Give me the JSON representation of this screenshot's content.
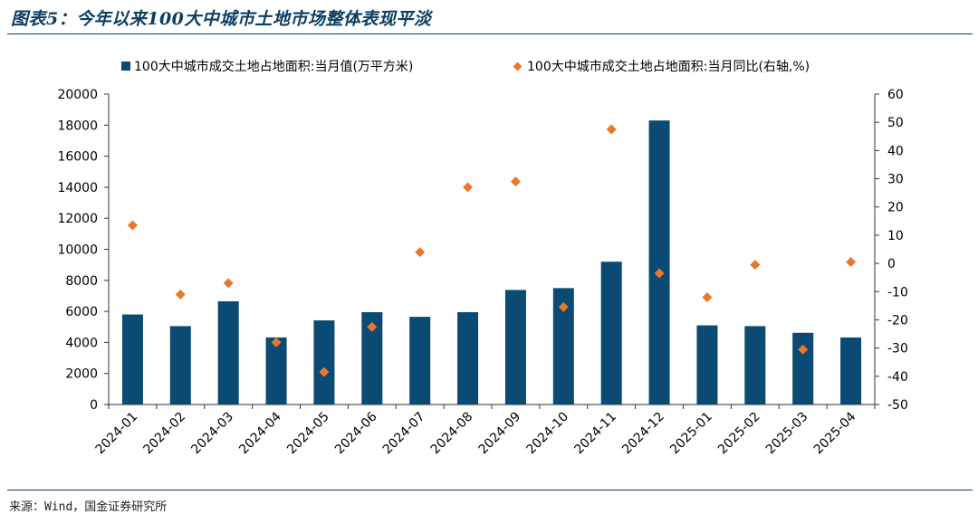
{
  "title": "图表5：今年以来100大中城市土地市场整体表现平淡",
  "source": "来源：Wind，国金证券研究所",
  "colors": {
    "bar": "#0b4a72",
    "point": "#e8782c",
    "rule": "#0b3e63"
  },
  "chart_data": {
    "type": "bar",
    "categories": [
      "2024-01",
      "2024-02",
      "2024-03",
      "2024-04",
      "2024-05",
      "2024-06",
      "2024-07",
      "2024-08",
      "2024-09",
      "2024-10",
      "2024-11",
      "2024-12",
      "2025-01",
      "2025-02",
      "2025-03",
      "2025-04"
    ],
    "series": [
      {
        "name": "100大中城市成交土地占地面积:当月值(万平方米)",
        "type": "bar",
        "axis": "left",
        "values": [
          5800,
          5050,
          6650,
          4320,
          5420,
          5950,
          5650,
          5950,
          7380,
          7500,
          9200,
          18300,
          5100,
          5050,
          4620,
          4320
        ]
      },
      {
        "name": "100大中城市成交土地占地面积:当月同比(右轴,%)",
        "type": "scatter",
        "axis": "right",
        "values": [
          13.5,
          -11.0,
          -7.0,
          -28.0,
          -38.5,
          -22.5,
          4.0,
          27.0,
          29.0,
          -15.5,
          47.5,
          -3.5,
          -12.0,
          -0.5,
          -30.5,
          0.5
        ]
      }
    ],
    "y_left": {
      "range": [
        0,
        20000
      ],
      "ticks": [
        "0",
        "2000",
        "4000",
        "6000",
        "8000",
        "10000",
        "12000",
        "14000",
        "16000",
        "18000",
        "20000"
      ]
    },
    "y_right": {
      "range": [
        -50,
        60
      ],
      "ticks": [
        "-50",
        "-40",
        "-30",
        "-20",
        "-10",
        "0",
        "10",
        "20",
        "30",
        "40",
        "50",
        "60"
      ]
    },
    "grid": false,
    "legend_position": "top"
  }
}
